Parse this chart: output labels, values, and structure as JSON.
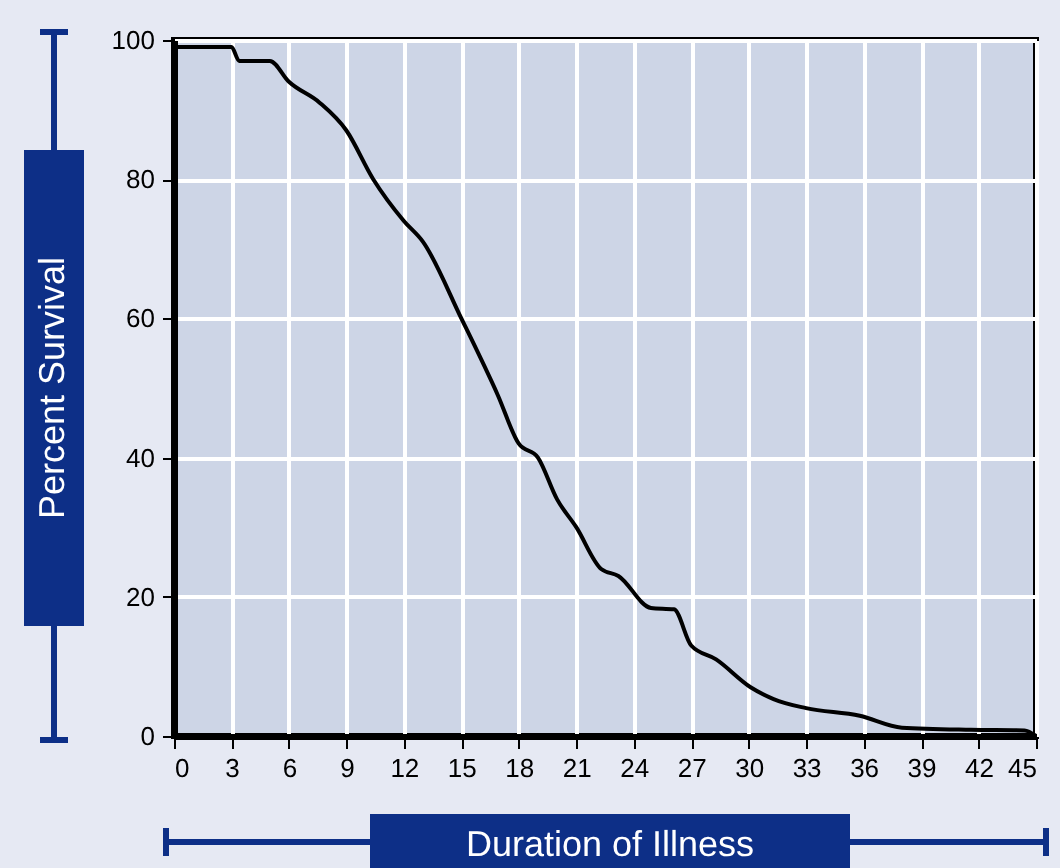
{
  "chart_data": {
    "type": "line",
    "xlabel": "Duration of Illness",
    "ylabel": "Percent Survival",
    "x": [
      0,
      3,
      3.4,
      5,
      6,
      7.6,
      9,
      10.4,
      12,
      13,
      15,
      16.9,
      18,
      19,
      20,
      21,
      22.3,
      23.2,
      24.9,
      26.1,
      27,
      28.3,
      30.1,
      31.3,
      33,
      35.8,
      38,
      41.6,
      44.4,
      45
    ],
    "values": [
      99,
      99,
      97,
      97,
      94,
      91,
      87,
      80,
      74,
      71,
      60,
      49,
      42,
      40,
      34,
      30,
      24,
      23,
      18.4,
      18.2,
      13,
      11,
      7,
      5.3,
      4,
      2.9,
      1.2,
      0.9,
      0.8,
      0
    ],
    "color": "#000000",
    "xlim": [
      0,
      45
    ],
    "xticks": [
      0,
      3,
      6,
      9,
      12,
      15,
      18,
      21,
      24,
      27,
      30,
      33,
      36,
      39,
      42,
      45
    ],
    "ylim": [
      0,
      100
    ],
    "yticks": [
      0,
      20,
      40,
      60,
      80,
      100
    ],
    "grid": true,
    "line_style": "solid"
  }
}
